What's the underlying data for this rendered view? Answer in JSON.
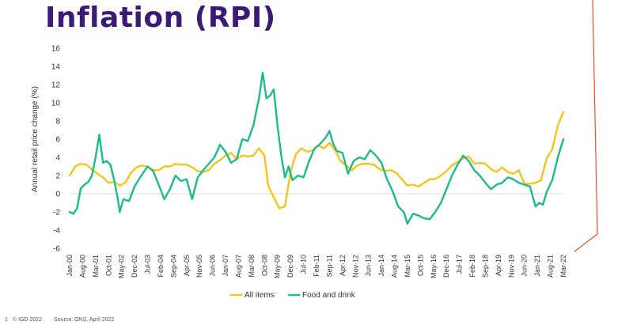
{
  "title": "Inflation (RPI)",
  "footer": {
    "page": "1",
    "copyright": "© IGD 2022",
    "source": "Source: ONS, April 2022"
  },
  "colors": {
    "title": "#3c1a78",
    "all_items": "#f5c518",
    "food_and_drink": "#1abc8c",
    "accent": "#e8502a"
  },
  "chart_data": {
    "type": "line",
    "title": "",
    "xlabel": "",
    "ylabel": "Annual retail price change (%)",
    "ylim": [
      -6,
      16
    ],
    "yticks": [
      -6,
      -4,
      -2,
      0,
      2,
      4,
      6,
      8,
      10,
      12,
      14,
      16
    ],
    "xlim": [
      "2000-01",
      "2022-03"
    ],
    "x_tick_labels": [
      "Jan-00",
      "Aug-00",
      "Mar-01",
      "Oct-01",
      "May-02",
      "Dec-02",
      "Jul-03",
      "Feb-04",
      "Sep-04",
      "Apr-05",
      "Nov-05",
      "Jun-06",
      "Jan-07",
      "Aug-07",
      "Mar-08",
      "Oct-08",
      "May-09",
      "Dec-09",
      "Jul-10",
      "Feb-11",
      "Sep-11",
      "Apr-12",
      "Nov-12",
      "Jun-13",
      "Jan-14",
      "Aug-14",
      "Mar-15",
      "Oct-15",
      "May-16",
      "Dec-16",
      "Jul-17",
      "Feb-18",
      "Sep-18",
      "Apr-19",
      "Nov-19",
      "Jun-20",
      "Jan-21",
      "Aug-21",
      "Mar-22"
    ],
    "grid": "zero line only",
    "legend_position": "bottom",
    "series": [
      {
        "name": "All items",
        "points": [
          [
            "2000-01",
            2.0
          ],
          [
            "2000-04",
            3.0
          ],
          [
            "2000-07",
            3.3
          ],
          [
            "2000-10",
            3.2
          ],
          [
            "2001-01",
            2.7
          ],
          [
            "2001-04",
            2.2
          ],
          [
            "2001-07",
            1.8
          ],
          [
            "2001-10",
            1.2
          ],
          [
            "2002-01",
            1.3
          ],
          [
            "2002-04",
            0.9
          ],
          [
            "2002-07",
            1.2
          ],
          [
            "2002-10",
            2.3
          ],
          [
            "2003-01",
            2.9
          ],
          [
            "2003-04",
            3.1
          ],
          [
            "2003-07",
            3.0
          ],
          [
            "2003-10",
            2.6
          ],
          [
            "2004-01",
            2.6
          ],
          [
            "2004-04",
            3.0
          ],
          [
            "2004-07",
            3.0
          ],
          [
            "2004-10",
            3.3
          ],
          [
            "2005-01",
            3.2
          ],
          [
            "2005-04",
            3.2
          ],
          [
            "2005-07",
            2.9
          ],
          [
            "2005-10",
            2.5
          ],
          [
            "2006-01",
            2.4
          ],
          [
            "2006-04",
            2.6
          ],
          [
            "2006-07",
            3.3
          ],
          [
            "2006-10",
            3.7
          ],
          [
            "2007-01",
            4.2
          ],
          [
            "2007-04",
            4.5
          ],
          [
            "2007-07",
            3.8
          ],
          [
            "2007-10",
            4.2
          ],
          [
            "2008-01",
            4.1
          ],
          [
            "2008-04",
            4.2
          ],
          [
            "2008-07",
            5.0
          ],
          [
            "2008-10",
            4.2
          ],
          [
            "2008-12",
            0.9
          ],
          [
            "2009-03",
            -0.4
          ],
          [
            "2009-06",
            -1.6
          ],
          [
            "2009-09",
            -1.4
          ],
          [
            "2009-12",
            2.4
          ],
          [
            "2010-03",
            4.4
          ],
          [
            "2010-06",
            5.0
          ],
          [
            "2010-09",
            4.6
          ],
          [
            "2010-12",
            4.8
          ],
          [
            "2011-03",
            5.3
          ],
          [
            "2011-06",
            5.0
          ],
          [
            "2011-09",
            5.6
          ],
          [
            "2011-12",
            4.8
          ],
          [
            "2012-03",
            3.6
          ],
          [
            "2012-06",
            3.1
          ],
          [
            "2012-09",
            2.6
          ],
          [
            "2012-12",
            3.1
          ],
          [
            "2013-03",
            3.3
          ],
          [
            "2013-06",
            3.3
          ],
          [
            "2013-09",
            3.2
          ],
          [
            "2013-12",
            2.7
          ],
          [
            "2014-03",
            2.5
          ],
          [
            "2014-06",
            2.6
          ],
          [
            "2014-09",
            2.3
          ],
          [
            "2014-12",
            1.6
          ],
          [
            "2015-03",
            0.9
          ],
          [
            "2015-06",
            1.0
          ],
          [
            "2015-09",
            0.8
          ],
          [
            "2015-12",
            1.2
          ],
          [
            "2016-03",
            1.6
          ],
          [
            "2016-06",
            1.6
          ],
          [
            "2016-09",
            2.0
          ],
          [
            "2016-12",
            2.5
          ],
          [
            "2017-03",
            3.1
          ],
          [
            "2017-06",
            3.5
          ],
          [
            "2017-09",
            3.9
          ],
          [
            "2017-12",
            4.1
          ],
          [
            "2018-03",
            3.3
          ],
          [
            "2018-06",
            3.4
          ],
          [
            "2018-09",
            3.3
          ],
          [
            "2018-12",
            2.7
          ],
          [
            "2019-03",
            2.4
          ],
          [
            "2019-06",
            2.9
          ],
          [
            "2019-09",
            2.4
          ],
          [
            "2019-12",
            2.2
          ],
          [
            "2020-03",
            2.6
          ],
          [
            "2020-06",
            1.1
          ],
          [
            "2020-09",
            1.1
          ],
          [
            "2020-12",
            1.2
          ],
          [
            "2021-03",
            1.5
          ],
          [
            "2021-06",
            3.9
          ],
          [
            "2021-09",
            4.9
          ],
          [
            "2021-12",
            7.5
          ],
          [
            "2022-03",
            9.0
          ]
        ]
      },
      {
        "name": "Food and drink",
        "points": [
          [
            "2000-01",
            -2.0
          ],
          [
            "2000-03",
            -2.2
          ],
          [
            "2000-05",
            -1.6
          ],
          [
            "2000-07",
            0.6
          ],
          [
            "2000-09",
            1.0
          ],
          [
            "2000-11",
            1.3
          ],
          [
            "2001-01",
            2.0
          ],
          [
            "2001-03",
            4.0
          ],
          [
            "2001-05",
            6.5
          ],
          [
            "2001-07",
            3.4
          ],
          [
            "2001-09",
            3.6
          ],
          [
            "2001-11",
            3.2
          ],
          [
            "2002-01",
            1.5
          ],
          [
            "2002-03",
            -0.6
          ],
          [
            "2002-04",
            -2.0
          ],
          [
            "2002-06",
            -0.6
          ],
          [
            "2002-09",
            -0.8
          ],
          [
            "2002-12",
            0.8
          ],
          [
            "2003-03",
            1.8
          ],
          [
            "2003-07",
            3.0
          ],
          [
            "2003-10",
            2.5
          ],
          [
            "2004-01",
            1.0
          ],
          [
            "2004-04",
            -0.6
          ],
          [
            "2004-07",
            0.5
          ],
          [
            "2004-10",
            2.0
          ],
          [
            "2005-01",
            1.4
          ],
          [
            "2005-04",
            1.6
          ],
          [
            "2005-07",
            -0.6
          ],
          [
            "2005-10",
            1.8
          ],
          [
            "2006-01",
            2.6
          ],
          [
            "2006-04",
            3.3
          ],
          [
            "2006-07",
            4.0
          ],
          [
            "2006-10",
            5.4
          ],
          [
            "2007-01",
            4.6
          ],
          [
            "2007-04",
            3.4
          ],
          [
            "2007-07",
            3.8
          ],
          [
            "2007-10",
            6.0
          ],
          [
            "2008-01",
            5.8
          ],
          [
            "2008-04",
            7.5
          ],
          [
            "2008-07",
            10.5
          ],
          [
            "2008-09",
            13.3
          ],
          [
            "2008-11",
            10.5
          ],
          [
            "2009-01",
            10.8
          ],
          [
            "2009-03",
            11.5
          ],
          [
            "2009-05",
            7.5
          ],
          [
            "2009-07",
            4.2
          ],
          [
            "2009-09",
            1.8
          ],
          [
            "2009-11",
            3.0
          ],
          [
            "2010-01",
            1.5
          ],
          [
            "2010-04",
            2.0
          ],
          [
            "2010-07",
            1.8
          ],
          [
            "2010-10",
            3.6
          ],
          [
            "2011-01",
            5.0
          ],
          [
            "2011-04",
            5.5
          ],
          [
            "2011-07",
            6.2
          ],
          [
            "2011-09",
            6.9
          ],
          [
            "2011-11",
            5.5
          ],
          [
            "2012-01",
            4.7
          ],
          [
            "2012-04",
            4.5
          ],
          [
            "2012-07",
            2.2
          ],
          [
            "2012-10",
            3.6
          ],
          [
            "2013-01",
            4.0
          ],
          [
            "2013-04",
            3.8
          ],
          [
            "2013-07",
            4.8
          ],
          [
            "2013-10",
            4.2
          ],
          [
            "2014-01",
            3.4
          ],
          [
            "2014-04",
            1.6
          ],
          [
            "2014-07",
            0.3
          ],
          [
            "2014-10",
            -1.4
          ],
          [
            "2015-01",
            -2.0
          ],
          [
            "2015-03",
            -3.3
          ],
          [
            "2015-06",
            -2.2
          ],
          [
            "2015-09",
            -2.4
          ],
          [
            "2015-12",
            -2.7
          ],
          [
            "2016-03",
            -2.8
          ],
          [
            "2016-06",
            -2.0
          ],
          [
            "2016-09",
            -1.0
          ],
          [
            "2016-12",
            0.5
          ],
          [
            "2017-03",
            2.0
          ],
          [
            "2017-06",
            3.2
          ],
          [
            "2017-09",
            4.2
          ],
          [
            "2017-12",
            3.6
          ],
          [
            "2018-03",
            2.6
          ],
          [
            "2018-06",
            2.0
          ],
          [
            "2018-09",
            1.2
          ],
          [
            "2018-12",
            0.5
          ],
          [
            "2019-03",
            1.0
          ],
          [
            "2019-06",
            1.2
          ],
          [
            "2019-09",
            1.8
          ],
          [
            "2019-12",
            1.6
          ],
          [
            "2020-03",
            1.2
          ],
          [
            "2020-06",
            1.0
          ],
          [
            "2020-09",
            0.8
          ],
          [
            "2020-12",
            -1.4
          ],
          [
            "2021-02",
            -1.0
          ],
          [
            "2021-04",
            -1.2
          ],
          [
            "2021-06",
            0.2
          ],
          [
            "2021-09",
            1.5
          ],
          [
            "2021-12",
            4.0
          ],
          [
            "2022-03",
            6.0
          ]
        ]
      }
    ]
  }
}
